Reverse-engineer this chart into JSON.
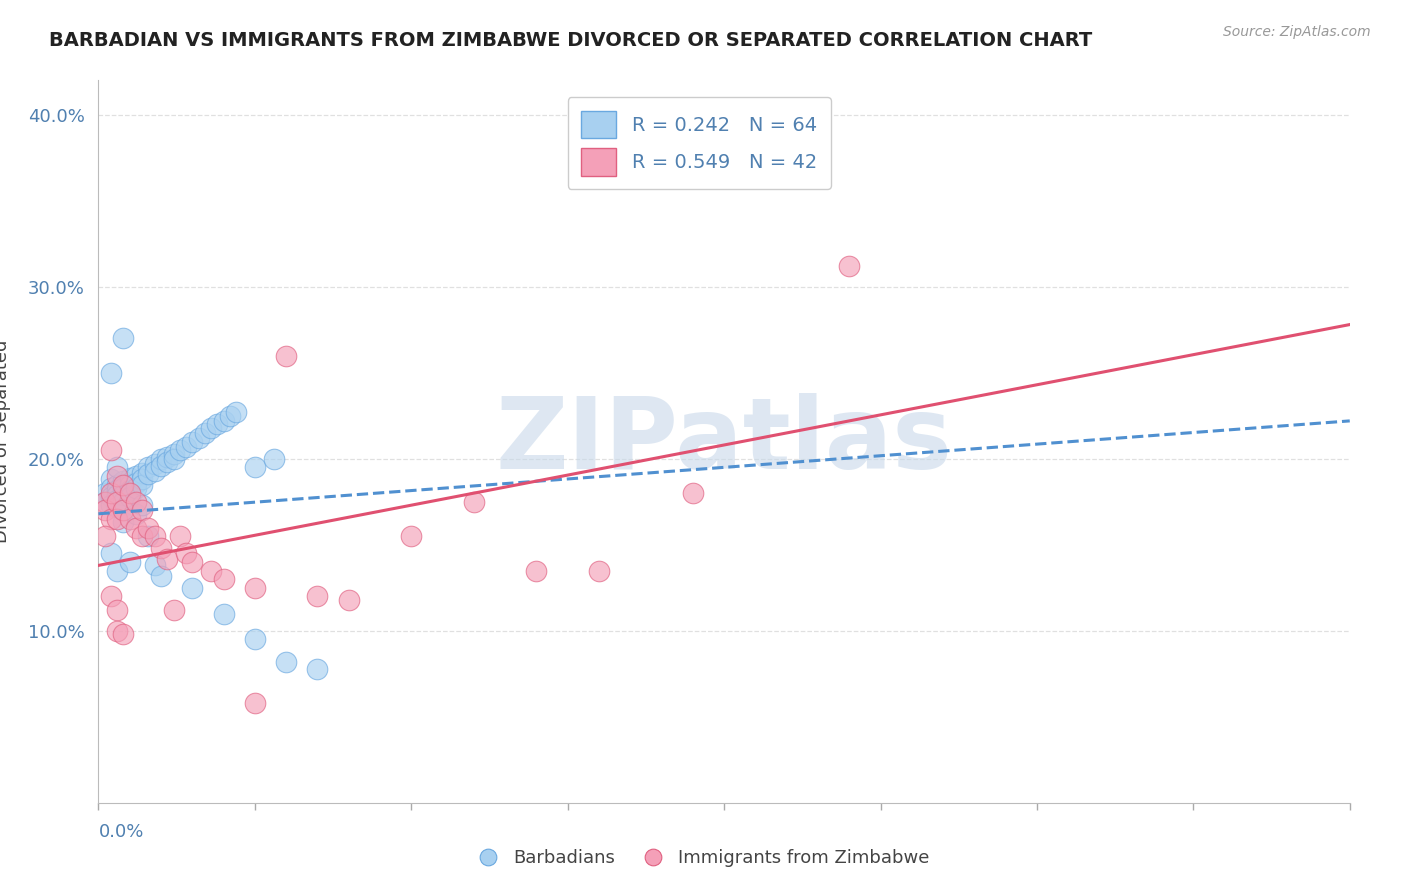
{
  "title": "BARBADIAN VS IMMIGRANTS FROM ZIMBABWE DIVORCED OR SEPARATED CORRELATION CHART",
  "source": "Source: ZipAtlas.com",
  "ylabel": "Divorced or Separated",
  "legend_entries": [
    {
      "label": "Barbadians",
      "R": 0.242,
      "N": 64,
      "color": "#a8d0f0"
    },
    {
      "label": "Immigrants from Zimbabwe",
      "R": 0.549,
      "N": 42,
      "color": "#f4a0b8"
    }
  ],
  "blue_scatter_x": [
    0.001,
    0.001,
    0.002,
    0.002,
    0.002,
    0.002,
    0.003,
    0.003,
    0.003,
    0.003,
    0.003,
    0.004,
    0.004,
    0.004,
    0.004,
    0.005,
    0.005,
    0.005,
    0.005,
    0.006,
    0.006,
    0.006,
    0.007,
    0.007,
    0.007,
    0.008,
    0.008,
    0.009,
    0.009,
    0.01,
    0.01,
    0.011,
    0.011,
    0.012,
    0.012,
    0.013,
    0.014,
    0.015,
    0.016,
    0.017,
    0.018,
    0.019,
    0.02,
    0.021,
    0.022,
    0.025,
    0.028,
    0.003,
    0.004,
    0.006,
    0.007,
    0.008,
    0.002,
    0.003,
    0.005,
    0.009,
    0.01,
    0.015,
    0.02,
    0.025,
    0.03,
    0.035,
    0.002,
    0.004
  ],
  "blue_scatter_y": [
    0.18,
    0.175,
    0.188,
    0.183,
    0.178,
    0.173,
    0.185,
    0.182,
    0.179,
    0.176,
    0.172,
    0.187,
    0.183,
    0.179,
    0.175,
    0.189,
    0.185,
    0.182,
    0.178,
    0.19,
    0.186,
    0.183,
    0.192,
    0.188,
    0.185,
    0.195,
    0.191,
    0.197,
    0.193,
    0.2,
    0.196,
    0.201,
    0.198,
    0.203,
    0.2,
    0.205,
    0.207,
    0.21,
    0.212,
    0.215,
    0.218,
    0.22,
    0.222,
    0.225,
    0.227,
    0.195,
    0.2,
    0.195,
    0.163,
    0.168,
    0.173,
    0.155,
    0.145,
    0.135,
    0.14,
    0.138,
    0.132,
    0.125,
    0.11,
    0.095,
    0.082,
    0.078,
    0.25,
    0.27
  ],
  "pink_scatter_x": [
    0.001,
    0.001,
    0.002,
    0.002,
    0.002,
    0.003,
    0.003,
    0.003,
    0.004,
    0.004,
    0.005,
    0.005,
    0.006,
    0.006,
    0.007,
    0.007,
    0.008,
    0.009,
    0.01,
    0.011,
    0.012,
    0.013,
    0.014,
    0.015,
    0.018,
    0.02,
    0.025,
    0.03,
    0.035,
    0.04,
    0.05,
    0.06,
    0.07,
    0.08,
    0.095,
    0.12,
    0.001,
    0.002,
    0.003,
    0.003,
    0.004,
    0.025
  ],
  "pink_scatter_y": [
    0.175,
    0.17,
    0.205,
    0.18,
    0.165,
    0.19,
    0.175,
    0.165,
    0.185,
    0.17,
    0.18,
    0.165,
    0.175,
    0.16,
    0.17,
    0.155,
    0.16,
    0.155,
    0.148,
    0.142,
    0.112,
    0.155,
    0.145,
    0.14,
    0.135,
    0.13,
    0.125,
    0.26,
    0.12,
    0.118,
    0.155,
    0.175,
    0.135,
    0.135,
    0.18,
    0.312,
    0.155,
    0.12,
    0.112,
    0.1,
    0.098,
    0.058
  ],
  "blue_line_x": [
    0.0,
    0.2
  ],
  "blue_line_y": [
    0.168,
    0.222
  ],
  "pink_line_x": [
    0.0,
    0.2
  ],
  "pink_line_y": [
    0.138,
    0.278
  ],
  "xlim": [
    0.0,
    0.2
  ],
  "ylim": [
    0.0,
    0.42
  ],
  "yticks": [
    0.1,
    0.2,
    0.3,
    0.4
  ],
  "ytick_labels": [
    "10.0%",
    "20.0%",
    "30.0%",
    "40.0%"
  ],
  "scatter_color_blue": "#a8d0f0",
  "scatter_edge_blue": "#6aa8e0",
  "scatter_color_pink": "#f4a0b8",
  "scatter_edge_pink": "#e06080",
  "line_color_blue": "#5090d0",
  "line_color_pink": "#e05070",
  "watermark": "ZIPatlas",
  "watermark_color": "#c8d8ea",
  "bg_color": "#ffffff",
  "grid_color": "#e0e0e0",
  "title_color": "#222222",
  "tick_label_color": "#5080b0",
  "source_color": "#999999"
}
